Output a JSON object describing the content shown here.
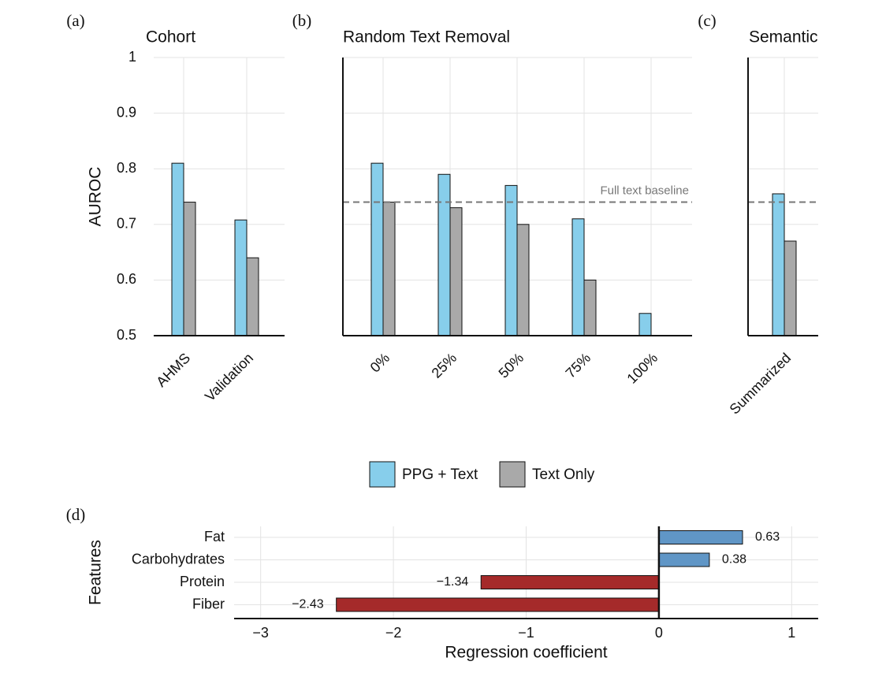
{
  "chart_data": [
    {
      "type": "bar",
      "panel": "(a)",
      "title": "Cohort",
      "ylabel": "AUROC",
      "categories": [
        "AHMS",
        "Validation"
      ],
      "series": [
        {
          "name": "PPG + Text",
          "color": "#87ceeb",
          "values": [
            0.81,
            0.708
          ]
        },
        {
          "name": "Text Only",
          "color": "#a9a9a9",
          "values": [
            0.74,
            0.64
          ]
        }
      ],
      "ylim": [
        0.5,
        1
      ],
      "yticks": [
        0.5,
        0.6,
        0.7,
        0.8,
        0.9,
        1
      ],
      "grid": true
    },
    {
      "type": "bar",
      "panel": "(b)",
      "title": "Random Text Removal",
      "categories": [
        "0%",
        "25%",
        "50%",
        "75%",
        "100%"
      ],
      "series": [
        {
          "color": "#87ceeb",
          "values": [
            0.81,
            0.79,
            0.77,
            0.71,
            0.54
          ]
        },
        {
          "color": "#a9a9a9",
          "values": [
            0.74,
            0.73,
            0.7,
            0.6,
            null
          ]
        }
      ],
      "baseline": 0.74,
      "baseline_label": "Full text baseline",
      "ylim": [
        0.5,
        1
      ],
      "yticks": [
        0.5,
        0.6,
        0.7,
        0.8,
        0.9,
        1
      ],
      "grid": true
    },
    {
      "type": "bar",
      "panel": "(c)",
      "title": "Semantic",
      "categories": [
        "Summarized"
      ],
      "series": [
        {
          "color": "#87ceeb",
          "values": [
            0.755
          ]
        },
        {
          "color": "#a9a9a9",
          "values": [
            0.67
          ]
        }
      ],
      "baseline": 0.74,
      "ylim": [
        0.5,
        1
      ],
      "yticks": [
        0.5,
        0.6,
        0.7,
        0.8,
        0.9,
        1
      ],
      "grid": true
    },
    {
      "type": "barh",
      "panel": "(d)",
      "xlabel": "Regression coefficient",
      "ylabel": "Features",
      "categories": [
        "Fat",
        "Carbohydrates",
        "Protein",
        "Fiber"
      ],
      "values": [
        0.63,
        0.38,
        -1.34,
        -2.43
      ],
      "value_labels": [
        "0.63",
        "0.38",
        "−1.34",
        "−2.43"
      ],
      "color_positive": "#6096c6",
      "color_negative": "#a52a2a",
      "xlim": [
        -3.2,
        1.2
      ],
      "xticks": [
        {
          "value": -3,
          "label": "−3"
        },
        {
          "value": -2,
          "label": "−2"
        },
        {
          "value": -1,
          "label": "−1"
        },
        0,
        1
      ],
      "grid": true
    }
  ]
}
